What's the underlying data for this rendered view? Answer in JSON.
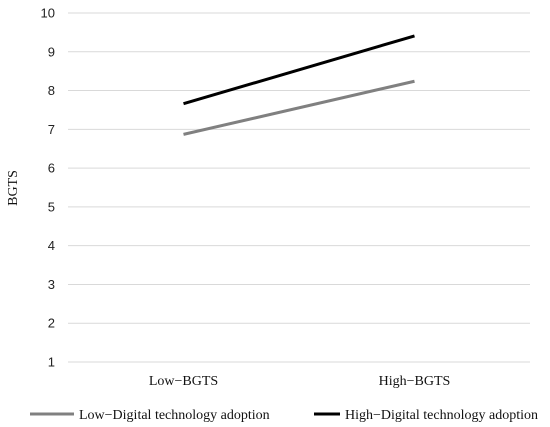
{
  "chart_data": {
    "type": "line",
    "ylabel": "BGTS",
    "xlabel": "",
    "categories": [
      "Low−BGTS",
      "High−BGTS"
    ],
    "ylim": [
      1,
      10
    ],
    "yticks": [
      1,
      2,
      3,
      4,
      5,
      6,
      7,
      8,
      9,
      10
    ],
    "grid": true,
    "legend_position": "bottom",
    "series": [
      {
        "name": "Low−Digital technology adoption",
        "values": [
          6.87,
          8.24
        ],
        "color": "#808080"
      },
      {
        "name": "High−Digital technology adoption",
        "values": [
          7.66,
          9.41
        ],
        "color": "#000000"
      }
    ]
  }
}
